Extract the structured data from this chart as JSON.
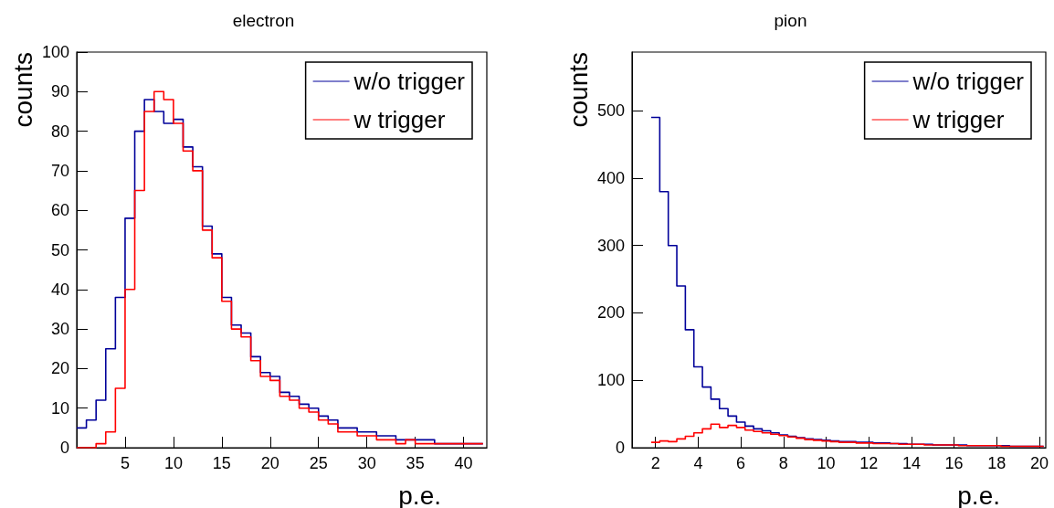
{
  "chart_data": [
    {
      "type": "histogram",
      "title": "electron",
      "xlabel": "p.e.",
      "ylabel": "counts",
      "xlim": [
        0,
        42.4
      ],
      "ylim": [
        0,
        100
      ],
      "xticks": [
        5,
        10,
        15,
        20,
        25,
        30,
        35,
        40
      ],
      "yticks": [
        0,
        10,
        20,
        30,
        40,
        50,
        60,
        70,
        80,
        90,
        100
      ],
      "grid": false,
      "legend": "top right",
      "bins": [
        0,
        1,
        2,
        3,
        4,
        5,
        6,
        7,
        8,
        9,
        10,
        11,
        12,
        13,
        14,
        15,
        16,
        17,
        18,
        19,
        20,
        21,
        22,
        23,
        24,
        25,
        26,
        27,
        28,
        29,
        30,
        31,
        32,
        33,
        34,
        35,
        36,
        37,
        38,
        39,
        40,
        41,
        42
      ],
      "series": [
        {
          "name": "w/o trigger",
          "color": "#000099",
          "values": [
            5,
            7,
            12,
            25,
            38,
            58,
            80,
            88,
            85,
            82,
            83,
            76,
            71,
            56,
            49,
            38,
            31,
            29,
            23,
            19,
            18,
            14,
            13,
            11,
            10,
            8,
            7,
            5,
            5,
            4,
            4,
            3,
            3,
            2,
            2,
            2,
            2,
            1,
            1,
            1,
            1,
            1
          ]
        },
        {
          "name": "w trigger",
          "color": "#ff0000",
          "values": [
            0,
            0,
            1,
            4,
            15,
            40,
            65,
            85,
            90,
            88,
            82,
            75,
            70,
            55,
            48,
            37,
            30,
            28,
            22,
            18,
            17,
            13,
            12,
            10,
            9,
            7,
            6,
            4,
            4,
            3,
            3,
            2,
            2,
            1,
            2,
            1,
            1,
            1,
            1,
            1,
            1,
            1
          ]
        }
      ]
    },
    {
      "type": "histogram",
      "title": "pion",
      "xlabel": "p.e.",
      "ylabel": "counts",
      "xlim": [
        0.9,
        20.3
      ],
      "ylim": [
        0,
        587
      ],
      "xticks": [
        2,
        4,
        6,
        8,
        10,
        12,
        14,
        16,
        18,
        20
      ],
      "yticks": [
        0,
        100,
        200,
        300,
        400,
        500
      ],
      "grid": false,
      "legend": "top right",
      "bins": [
        1.8,
        2.2,
        2.6,
        3.0,
        3.4,
        3.8,
        4.2,
        4.6,
        5.0,
        5.4,
        5.8,
        6.2,
        6.6,
        7.0,
        7.4,
        7.8,
        8.2,
        8.6,
        9.0,
        9.4,
        9.8,
        10.2,
        10.6,
        11.0,
        11.4,
        11.8,
        12.2,
        12.6,
        13.0,
        13.4,
        13.8,
        14.2,
        14.6,
        15.0,
        15.4,
        15.8,
        16.2,
        16.6,
        17.0,
        17.4,
        17.8,
        18.2,
        18.6,
        19.0,
        19.4,
        19.8,
        20.2
      ],
      "series": [
        {
          "name": "w/o trigger",
          "color": "#000099",
          "values": [
            490,
            380,
            300,
            240,
            175,
            120,
            90,
            72,
            58,
            47,
            38,
            32,
            28,
            25,
            22,
            19,
            17,
            15,
            13,
            12,
            11,
            10,
            9,
            9,
            8,
            8,
            7,
            7,
            6,
            6,
            5,
            5,
            5,
            4,
            4,
            4,
            4,
            3,
            3,
            3,
            3,
            3,
            2,
            2,
            2,
            2
          ]
        },
        {
          "name": "w trigger",
          "color": "#ff0000",
          "values": [
            8,
            10,
            9,
            13,
            17,
            22,
            28,
            35,
            30,
            33,
            30,
            26,
            24,
            22,
            20,
            18,
            16,
            14,
            12,
            11,
            10,
            9,
            8,
            8,
            7,
            7,
            6,
            6,
            6,
            5,
            5,
            5,
            4,
            4,
            4,
            4,
            3,
            3,
            3,
            3,
            3,
            2,
            2,
            2,
            2,
            2
          ]
        }
      ]
    }
  ]
}
